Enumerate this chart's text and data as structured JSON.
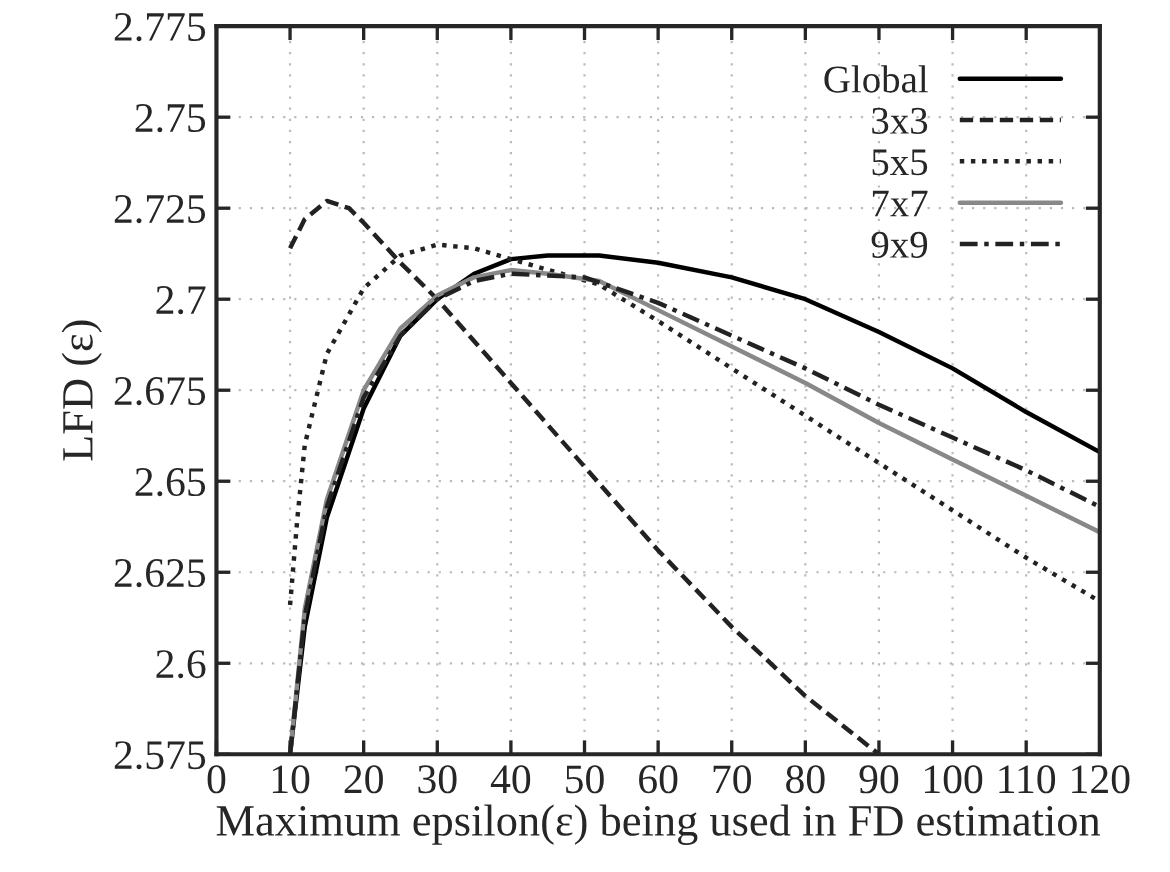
{
  "chart_data": {
    "type": "line",
    "xlabel": "Maximum epsilon(ε) being used in FD estimation",
    "ylabel": "LFD (ε)",
    "xlim": [
      0,
      120
    ],
    "xticks": [
      0,
      10,
      20,
      30,
      40,
      50,
      60,
      70,
      80,
      90,
      100,
      110,
      120
    ],
    "ylim": [
      2.575,
      2.775
    ],
    "yticks": [
      2.575,
      2.6,
      2.625,
      2.65,
      2.675,
      2.7,
      2.725,
      2.75,
      2.775
    ],
    "grid": true,
    "legend": "top right",
    "marker": "none",
    "series": [
      {
        "name": "Global",
        "color": "#000000",
        "line_style": "solid",
        "x": [
          10,
          12,
          15,
          20,
          25,
          30,
          35,
          40,
          45,
          52,
          60,
          70,
          80,
          90,
          100,
          110,
          120
        ],
        "values": [
          2.575,
          2.61,
          2.64,
          2.67,
          2.69,
          2.7,
          2.707,
          2.711,
          2.712,
          2.712,
          2.71,
          2.706,
          2.7,
          2.691,
          2.681,
          2.669,
          2.658
        ]
      },
      {
        "name": "3x3",
        "color": "#222222",
        "line_style": "dashed",
        "x": [
          10,
          12,
          15,
          18,
          20,
          25,
          30,
          40,
          50,
          60,
          70,
          80,
          90
        ],
        "values": [
          2.714,
          2.722,
          2.727,
          2.725,
          2.721,
          2.71,
          2.7,
          2.677,
          2.654,
          2.631,
          2.61,
          2.591,
          2.575
        ]
      },
      {
        "name": "5x5",
        "color": "#222222",
        "line_style": "dotted",
        "x": [
          10,
          11,
          12,
          15,
          20,
          25,
          30,
          35,
          40,
          52,
          60,
          70,
          80,
          90,
          100,
          110,
          120
        ],
        "values": [
          2.616,
          2.64,
          2.66,
          2.685,
          2.703,
          2.712,
          2.715,
          2.714,
          2.711,
          2.704,
          2.694,
          2.681,
          2.668,
          2.655,
          2.642,
          2.629,
          2.617
        ]
      },
      {
        "name": "7x7",
        "color": "#888888",
        "line_style": "solid",
        "x": [
          10,
          12,
          15,
          20,
          25,
          30,
          35,
          40,
          45,
          52,
          60,
          70,
          80,
          90,
          100,
          110,
          120
        ],
        "values": [
          2.575,
          2.615,
          2.645,
          2.675,
          2.692,
          2.701,
          2.706,
          2.708,
          2.707,
          2.705,
          2.697,
          2.687,
          2.677,
          2.666,
          2.656,
          2.646,
          2.636
        ]
      },
      {
        "name": "9x9",
        "color": "#222222",
        "line_style": "dashdot",
        "x": [
          10,
          12,
          15,
          20,
          25,
          30,
          35,
          40,
          50,
          60,
          70,
          80,
          90,
          100,
          110,
          120
        ],
        "values": [
          2.575,
          2.613,
          2.643,
          2.673,
          2.69,
          2.7,
          2.705,
          2.707,
          2.706,
          2.699,
          2.69,
          2.681,
          2.671,
          2.662,
          2.653,
          2.643
        ]
      }
    ]
  }
}
